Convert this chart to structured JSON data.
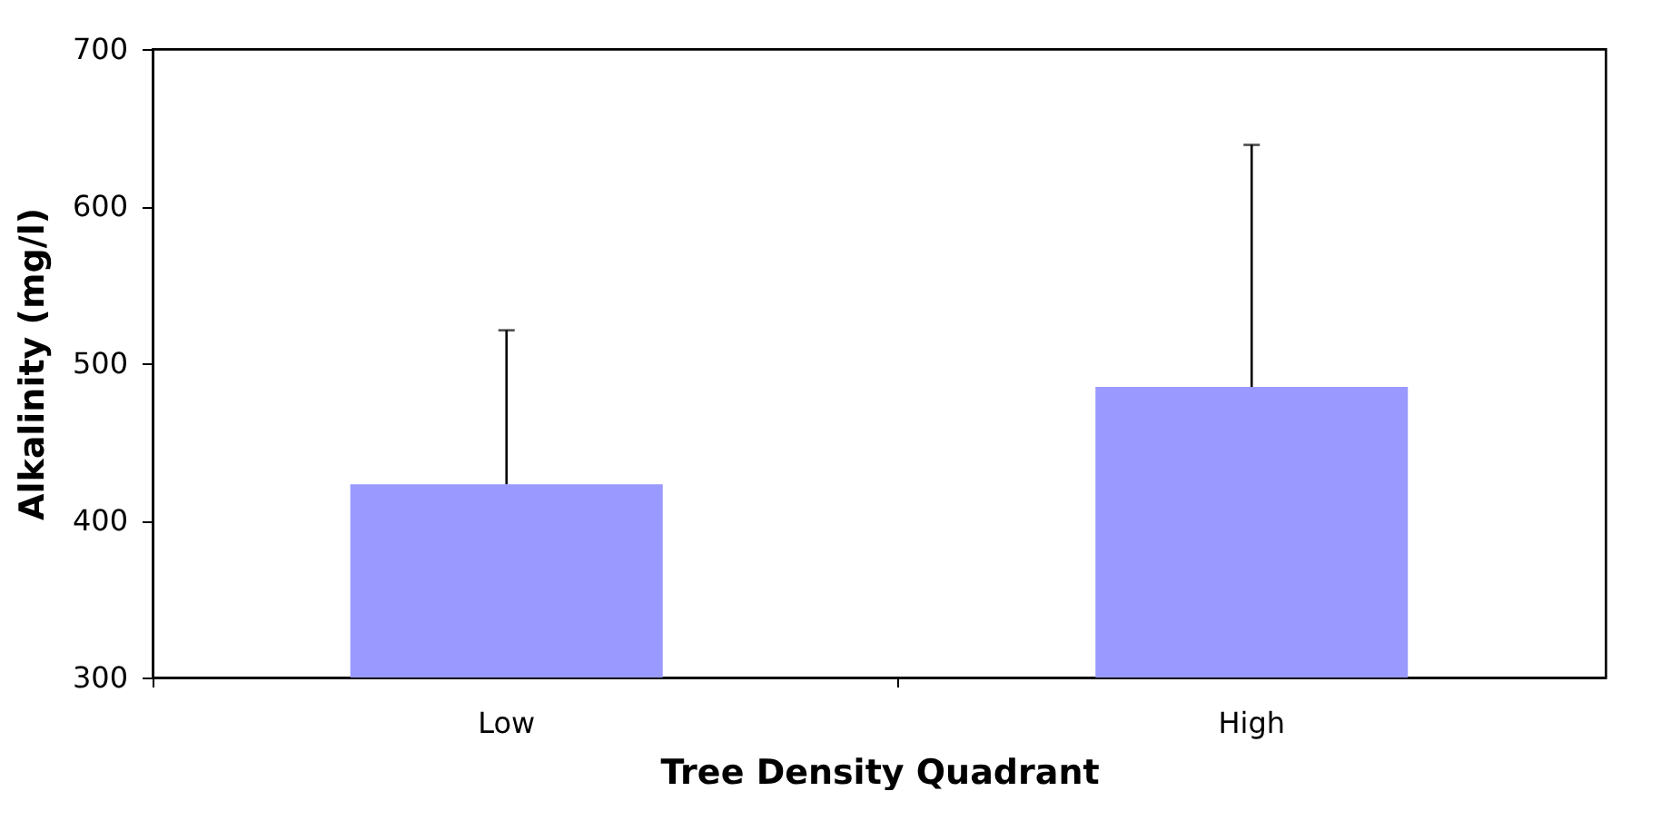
{
  "chart_data": {
    "type": "bar",
    "xlabel": "Tree Density Quadrant",
    "ylabel": "Alkalinity (mg/l)",
    "categories": [
      "Low",
      "High"
    ],
    "values": [
      423,
      485
    ],
    "color": "#9999ff",
    "errors": [
      [
        423,
        521
      ],
      [
        485,
        639
      ]
    ],
    "ylim": [
      300,
      700
    ],
    "yticks": [
      300,
      400,
      500,
      600,
      700
    ],
    "grid": false
  }
}
